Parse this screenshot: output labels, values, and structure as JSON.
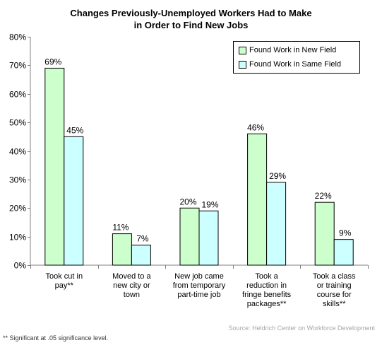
{
  "colors": {
    "series1_fill": "#ccffcc",
    "series2_fill": "#ccffff",
    "bar_stroke": "#000000",
    "axis": "#808080",
    "grid": "#c0c0c0",
    "source_text": "#a6a6a6"
  },
  "chart_data": {
    "type": "bar",
    "title_lines": [
      "Changes Previously-Unemployed Workers Had to Make",
      "in Order to Find New Jobs"
    ],
    "xlabel": "",
    "ylabel": "",
    "ylim": [
      0,
      80
    ],
    "yticks": [
      0,
      10,
      20,
      30,
      40,
      50,
      60,
      70,
      80
    ],
    "ytick_labels": [
      "0%",
      "10%",
      "20%",
      "30%",
      "40%",
      "50%",
      "60%",
      "70%",
      "80%"
    ],
    "grid": false,
    "legend_position": "top-right",
    "categories": [
      [
        "Took cut in",
        "pay**"
      ],
      [
        "Moved to a",
        "new city or",
        "town"
      ],
      [
        "New job came",
        "from temporary",
        "part-time job"
      ],
      [
        "Took a",
        "reduction in",
        "fringe benefits",
        "packages**"
      ],
      [
        "Took a class",
        "or training",
        "course for",
        "skills**"
      ]
    ],
    "series": [
      {
        "name": "Found Work in New Field",
        "values": [
          69,
          11,
          20,
          46,
          22
        ],
        "labels": [
          "69%",
          "11%",
          "20%",
          "46%",
          "22%"
        ]
      },
      {
        "name": "Found Work in Same Field",
        "values": [
          45,
          7,
          19,
          29,
          9
        ],
        "labels": [
          "45%",
          "7%",
          "19%",
          "29%",
          "9%"
        ]
      }
    ]
  },
  "footnote": "** Significant at .05 significance level.",
  "source": "Source: Heldrich Center on Workforce Development"
}
